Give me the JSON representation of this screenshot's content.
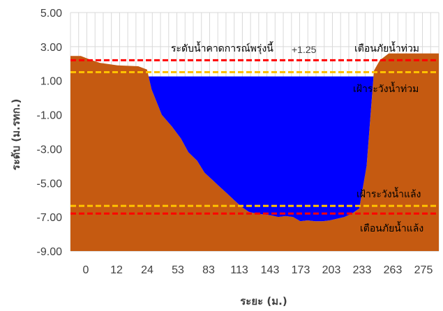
{
  "chart_data": {
    "type": "area",
    "xlabel": "ระยะ (ม.)",
    "ylabel": "ระดับ (ม.รทก.)",
    "ylim": [
      -9,
      5
    ],
    "yticks": [
      "5.00",
      "3.00",
      "1.00",
      "-1.00",
      "-3.00",
      "-5.00",
      "-7.00",
      "-9.00"
    ],
    "ytick_values": [
      5,
      3,
      1,
      -1,
      -3,
      -5,
      -7,
      -9
    ],
    "xticks": [
      "0",
      "12",
      "24",
      "53",
      "83",
      "113",
      "143",
      "173",
      "203",
      "233",
      "263",
      "275"
    ],
    "grid": true,
    "colors": {
      "ground": "#C55A11",
      "water": "#0000FF",
      "warning_line": "#FF0000",
      "watch_line": "#FFC000",
      "grid": "#D9D9D9"
    },
    "ground_profile": {
      "x": [
        0,
        0.7,
        1.3,
        2,
        3.2,
        4.6,
        5.2,
        5.5,
        6.2,
        6.9,
        7.5,
        8,
        8.6,
        9.1,
        9.6,
        10.1,
        10.6,
        11.1,
        11.6,
        12.1,
        12.6,
        13.1,
        13.6,
        14.1,
        14.6,
        15.1,
        15.6,
        16.1,
        16.6,
        17.1,
        17.6,
        18.1,
        18.6,
        19.1,
        19.6,
        20.1,
        20.6,
        21,
        21.6,
        22.1,
        22.6,
        23.1,
        23.6,
        24.1,
        25
      ],
      "y": [
        2.45,
        2.45,
        2.25,
        2.05,
        1.9,
        1.85,
        1.65,
        0.5,
        -1.0,
        -1.7,
        -2.4,
        -3.2,
        -3.7,
        -4.4,
        -4.8,
        -5.2,
        -5.6,
        -6.0,
        -6.4,
        -6.7,
        -6.8,
        -6.85,
        -6.9,
        -7.0,
        -6.95,
        -7.0,
        -7.25,
        -7.2,
        -7.25,
        -7.25,
        -7.2,
        -7.1,
        -7.0,
        -6.8,
        -6.5,
        -4.0,
        1.6,
        2.2,
        2.6,
        2.6,
        2.6,
        2.6,
        2.6,
        2.6,
        2.6
      ]
    },
    "water_level": 1.25,
    "lines": [
      {
        "name": "เตือนภัยน้ำท่วม",
        "y": 2.2,
        "style": "red"
      },
      {
        "name": "เฝ้าระวังน้ำท่วม",
        "y": 1.5,
        "style": "yellow"
      },
      {
        "name": "เฝ้าระวังน้ำแล้ง",
        "y": -6.35,
        "style": "yellow"
      },
      {
        "name": "เตือนภัยน้ำแล้ง",
        "y": -6.8,
        "style": "red"
      }
    ],
    "annotations": {
      "forecast_label": "ระดับน้ำคาดการณ์พรุ่งนี้",
      "forecast_value": "+1.25",
      "flood_warning": "เตือนภัยน้ำท่วม",
      "flood_watch": "เฝ้าระวังน้ำท่วม",
      "drought_watch": "เฝ้าระวังน้ำแล้ง",
      "drought_warning": "เตือนภัยน้ำแล้ง"
    }
  }
}
